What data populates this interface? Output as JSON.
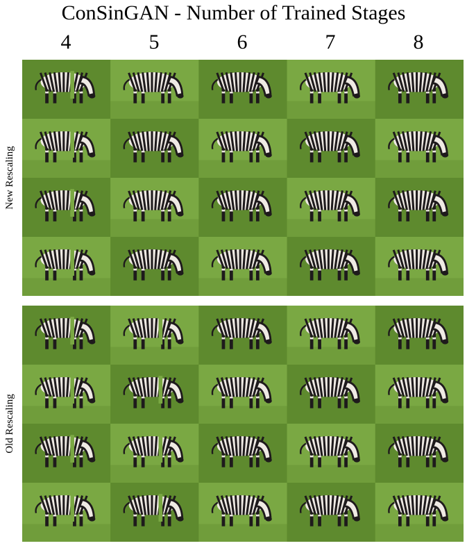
{
  "figure": {
    "title": "ConSinGAN - Number of Trained Stages",
    "columns": [
      "4",
      "5",
      "6",
      "7",
      "8"
    ],
    "panels": [
      {
        "label": "New Rescaling",
        "rows": 4
      },
      {
        "label": "Old Rescaling",
        "rows": 4
      }
    ]
  },
  "colors": {
    "grass_light": "#7aa843",
    "grass_dark": "#5e8a2e",
    "stripe_dark": "#1e1a1c",
    "stripe_light": "#efeae4"
  }
}
